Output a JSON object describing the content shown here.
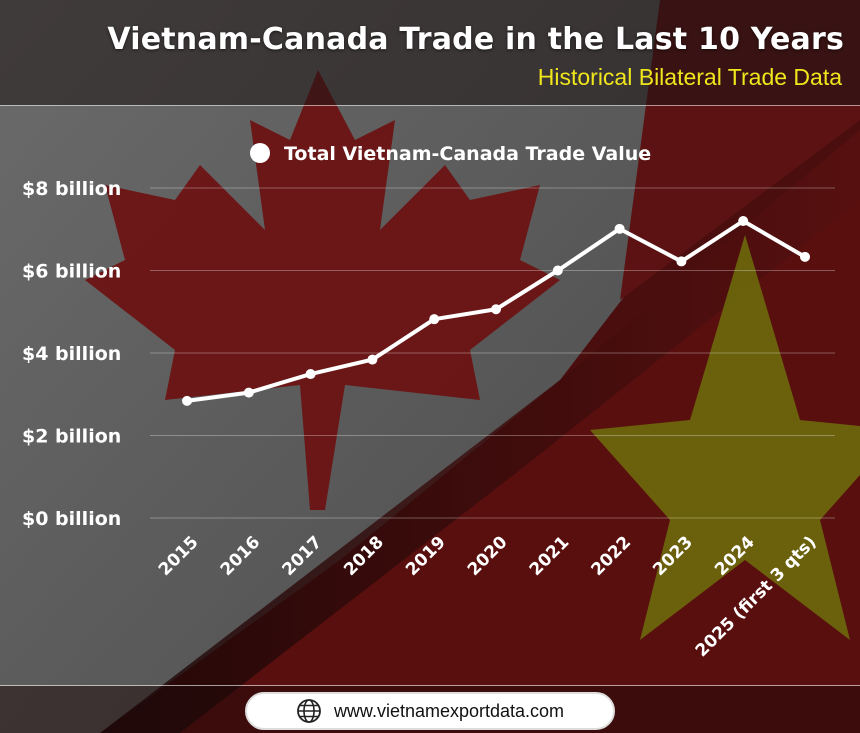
{
  "header": {
    "title": "Vietnam-Canada Trade in the Last 10 Years",
    "subtitle": "Historical Bilateral Trade Data"
  },
  "footer": {
    "url": "www.vietnamexportdata.com",
    "icon": "globe-icon"
  },
  "colors": {
    "line": "#ffffff",
    "subtitle": "#f0e61c",
    "canada_red": "#7a1414",
    "vietnam_yellow": "#8a8a10"
  },
  "chart_data": {
    "type": "line",
    "title": "Vietnam-Canada Trade in the Last 10 Years",
    "subtitle": "Historical Bilateral Trade Data",
    "legend_position": "top-center",
    "categories": [
      "2015",
      "2016",
      "2017",
      "2018",
      "2019",
      "2020",
      "2021",
      "2022",
      "2023",
      "2024",
      "2025 (first 3 qts)"
    ],
    "series": [
      {
        "name": "Total Vietnam-Canada Trade Value",
        "values": [
          2.84,
          3.04,
          3.49,
          3.84,
          4.82,
          5.06,
          6.0,
          7.01,
          6.22,
          7.2,
          6.33
        ]
      }
    ],
    "y_ticks": [
      {
        "value": 0,
        "label": "$0 billion"
      },
      {
        "value": 2,
        "label": "$2 billion"
      },
      {
        "value": 4,
        "label": "$4 billion"
      },
      {
        "value": 6,
        "label": "$6 billion"
      },
      {
        "value": 8,
        "label": "$8 billion"
      }
    ],
    "ylim": [
      0,
      8
    ],
    "xlabel": "",
    "ylabel": "",
    "grid": true
  }
}
